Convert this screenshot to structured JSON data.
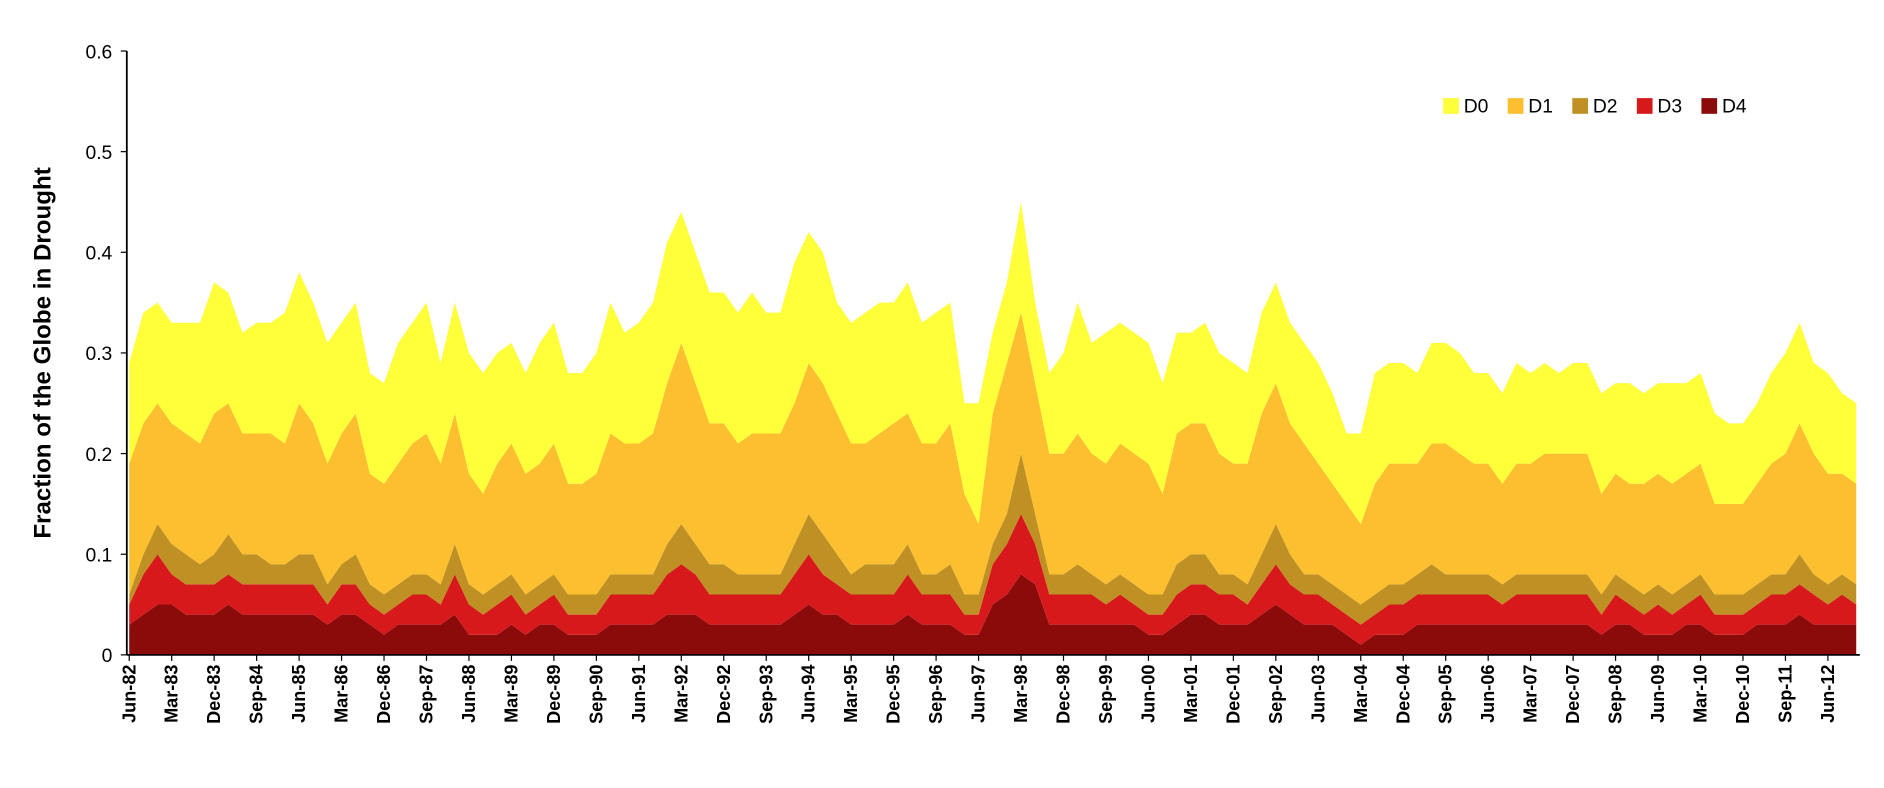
{
  "chart_data": {
    "type": "stacked_area",
    "y_label": "Fraction of the Globe in Drought",
    "ylim": [
      0,
      0.6
    ],
    "yticks": [
      0,
      0.1,
      0.2,
      0.3,
      0.4,
      0.5,
      0.6
    ],
    "legend": "upper right",
    "categories": [
      "Jun-82",
      null,
      null,
      "Mar-83",
      null,
      null,
      "Dec-83",
      null,
      null,
      "Sep-84",
      null,
      null,
      "Jun-85",
      null,
      null,
      "Mar-86",
      null,
      null,
      "Dec-86",
      null,
      null,
      "Sep-87",
      null,
      null,
      "Jun-88",
      null,
      null,
      "Mar-89",
      null,
      null,
      "Dec-89",
      null,
      null,
      "Sep-90",
      null,
      null,
      "Jun-91",
      null,
      null,
      "Mar-92",
      null,
      null,
      "Dec-92",
      null,
      null,
      "Sep-93",
      null,
      null,
      "Jun-94",
      null,
      null,
      "Mar-95",
      null,
      null,
      "Dec-95",
      null,
      null,
      "Sep-96",
      null,
      null,
      "Jun-97",
      null,
      null,
      "Mar-98",
      null,
      null,
      "Dec-98",
      null,
      null,
      "Sep-99",
      null,
      null,
      "Jun-00",
      null,
      null,
      "Mar-01",
      null,
      null,
      "Dec-01",
      null,
      null,
      "Sep-02",
      null,
      null,
      "Jun-03",
      null,
      null,
      "Mar-04",
      null,
      null,
      "Dec-04",
      null,
      null,
      "Sep-05",
      null,
      null,
      "Jun-06",
      null,
      null,
      "Mar-07",
      null,
      null,
      "Dec-07",
      null,
      null,
      "Sep-08",
      null,
      null,
      "Jun-09",
      null,
      null,
      "Mar-10",
      null,
      null,
      "Dec-10",
      null,
      null,
      "Sep-11",
      null,
      null,
      "Jun-12",
      null,
      null
    ],
    "series": [
      {
        "name": "D4",
        "color": "#8b0a0a",
        "values": [
          0.03,
          0.04,
          0.05,
          0.05,
          0.04,
          0.04,
          0.04,
          0.05,
          0.04,
          0.04,
          0.04,
          0.04,
          0.04,
          0.04,
          0.03,
          0.04,
          0.04,
          0.03,
          0.02,
          0.03,
          0.03,
          0.03,
          0.03,
          0.04,
          0.02,
          0.02,
          0.02,
          0.03,
          0.02,
          0.03,
          0.03,
          0.02,
          0.02,
          0.02,
          0.03,
          0.03,
          0.03,
          0.03,
          0.04,
          0.04,
          0.04,
          0.03,
          0.03,
          0.03,
          0.03,
          0.03,
          0.03,
          0.04,
          0.05,
          0.04,
          0.04,
          0.03,
          0.03,
          0.03,
          0.03,
          0.04,
          0.03,
          0.03,
          0.03,
          0.02,
          0.02,
          0.05,
          0.06,
          0.08,
          0.07,
          0.03,
          0.03,
          0.03,
          0.03,
          0.03,
          0.03,
          0.03,
          0.02,
          0.02,
          0.03,
          0.04,
          0.04,
          0.03,
          0.03,
          0.03,
          0.04,
          0.05,
          0.04,
          0.03,
          0.03,
          0.03,
          0.02,
          0.01,
          0.02,
          0.02,
          0.02,
          0.03,
          0.03,
          0.03,
          0.03,
          0.03,
          0.03,
          0.03,
          0.03,
          0.03,
          0.03,
          0.03,
          0.03,
          0.03,
          0.02,
          0.03,
          0.03,
          0.02,
          0.02,
          0.02,
          0.03,
          0.03,
          0.02,
          0.02,
          0.02,
          0.03,
          0.03,
          0.03,
          0.04,
          0.03,
          0.03,
          0.03,
          0.03
        ]
      },
      {
        "name": "D3",
        "color": "#d7191c",
        "values": [
          0.02,
          0.04,
          0.05,
          0.03,
          0.03,
          0.03,
          0.03,
          0.03,
          0.03,
          0.03,
          0.03,
          0.03,
          0.03,
          0.03,
          0.02,
          0.03,
          0.03,
          0.02,
          0.02,
          0.02,
          0.03,
          0.03,
          0.02,
          0.04,
          0.03,
          0.02,
          0.03,
          0.03,
          0.02,
          0.02,
          0.03,
          0.02,
          0.02,
          0.02,
          0.03,
          0.03,
          0.03,
          0.03,
          0.04,
          0.05,
          0.04,
          0.03,
          0.03,
          0.03,
          0.03,
          0.03,
          0.03,
          0.04,
          0.05,
          0.04,
          0.03,
          0.03,
          0.03,
          0.03,
          0.03,
          0.04,
          0.03,
          0.03,
          0.03,
          0.02,
          0.02,
          0.04,
          0.05,
          0.06,
          0.04,
          0.03,
          0.03,
          0.03,
          0.03,
          0.02,
          0.03,
          0.02,
          0.02,
          0.02,
          0.03,
          0.03,
          0.03,
          0.03,
          0.03,
          0.02,
          0.03,
          0.04,
          0.03,
          0.03,
          0.03,
          0.02,
          0.02,
          0.02,
          0.02,
          0.03,
          0.03,
          0.03,
          0.03,
          0.03,
          0.03,
          0.03,
          0.03,
          0.02,
          0.03,
          0.03,
          0.03,
          0.03,
          0.03,
          0.03,
          0.02,
          0.03,
          0.02,
          0.02,
          0.03,
          0.02,
          0.02,
          0.03,
          0.02,
          0.02,
          0.02,
          0.02,
          0.03,
          0.03,
          0.03,
          0.03,
          0.02,
          0.03,
          0.02
        ]
      },
      {
        "name": "D2",
        "color": "#bf9124",
        "values": [
          0.01,
          0.02,
          0.03,
          0.03,
          0.03,
          0.02,
          0.03,
          0.04,
          0.03,
          0.03,
          0.02,
          0.02,
          0.03,
          0.03,
          0.02,
          0.02,
          0.03,
          0.02,
          0.02,
          0.02,
          0.02,
          0.02,
          0.02,
          0.03,
          0.02,
          0.02,
          0.02,
          0.02,
          0.02,
          0.02,
          0.02,
          0.02,
          0.02,
          0.02,
          0.02,
          0.02,
          0.02,
          0.02,
          0.03,
          0.04,
          0.03,
          0.03,
          0.03,
          0.02,
          0.02,
          0.02,
          0.02,
          0.03,
          0.04,
          0.04,
          0.03,
          0.02,
          0.03,
          0.03,
          0.03,
          0.03,
          0.02,
          0.02,
          0.03,
          0.02,
          0.02,
          0.02,
          0.03,
          0.06,
          0.03,
          0.02,
          0.02,
          0.03,
          0.02,
          0.02,
          0.02,
          0.02,
          0.02,
          0.02,
          0.03,
          0.03,
          0.03,
          0.02,
          0.02,
          0.02,
          0.03,
          0.04,
          0.03,
          0.02,
          0.02,
          0.02,
          0.02,
          0.02,
          0.02,
          0.02,
          0.02,
          0.02,
          0.03,
          0.02,
          0.02,
          0.02,
          0.02,
          0.02,
          0.02,
          0.02,
          0.02,
          0.02,
          0.02,
          0.02,
          0.02,
          0.02,
          0.02,
          0.02,
          0.02,
          0.02,
          0.02,
          0.02,
          0.02,
          0.02,
          0.02,
          0.02,
          0.02,
          0.02,
          0.03,
          0.02,
          0.02,
          0.02,
          0.02
        ]
      },
      {
        "name": "D1",
        "color": "#fcbf2f",
        "values": [
          0.13,
          0.13,
          0.12,
          0.12,
          0.12,
          0.12,
          0.14,
          0.13,
          0.12,
          0.12,
          0.13,
          0.12,
          0.15,
          0.13,
          0.12,
          0.13,
          0.14,
          0.11,
          0.11,
          0.12,
          0.13,
          0.14,
          0.12,
          0.13,
          0.11,
          0.1,
          0.12,
          0.13,
          0.12,
          0.12,
          0.13,
          0.11,
          0.11,
          0.12,
          0.14,
          0.13,
          0.13,
          0.14,
          0.16,
          0.18,
          0.16,
          0.14,
          0.14,
          0.13,
          0.14,
          0.14,
          0.14,
          0.14,
          0.15,
          0.15,
          0.14,
          0.13,
          0.12,
          0.13,
          0.14,
          0.13,
          0.13,
          0.13,
          0.14,
          0.1,
          0.07,
          0.13,
          0.15,
          0.14,
          0.13,
          0.12,
          0.12,
          0.13,
          0.12,
          0.12,
          0.13,
          0.13,
          0.13,
          0.1,
          0.13,
          0.13,
          0.13,
          0.12,
          0.11,
          0.12,
          0.14,
          0.14,
          0.13,
          0.13,
          0.11,
          0.1,
          0.09,
          0.08,
          0.11,
          0.12,
          0.12,
          0.11,
          0.12,
          0.13,
          0.12,
          0.11,
          0.11,
          0.1,
          0.11,
          0.11,
          0.12,
          0.12,
          0.12,
          0.12,
          0.1,
          0.1,
          0.1,
          0.11,
          0.11,
          0.11,
          0.11,
          0.11,
          0.09,
          0.09,
          0.09,
          0.1,
          0.11,
          0.12,
          0.13,
          0.12,
          0.11,
          0.1,
          0.1
        ]
      },
      {
        "name": "D0",
        "color": "#ffff3a",
        "values": [
          0.1,
          0.11,
          0.1,
          0.1,
          0.11,
          0.12,
          0.13,
          0.11,
          0.1,
          0.11,
          0.11,
          0.13,
          0.13,
          0.12,
          0.12,
          0.11,
          0.11,
          0.1,
          0.1,
          0.12,
          0.12,
          0.13,
          0.1,
          0.11,
          0.12,
          0.12,
          0.11,
          0.1,
          0.1,
          0.12,
          0.12,
          0.11,
          0.11,
          0.12,
          0.13,
          0.11,
          0.12,
          0.13,
          0.14,
          0.13,
          0.13,
          0.13,
          0.13,
          0.13,
          0.14,
          0.12,
          0.12,
          0.14,
          0.13,
          0.13,
          0.11,
          0.12,
          0.13,
          0.13,
          0.12,
          0.13,
          0.12,
          0.13,
          0.12,
          0.09,
          0.12,
          0.08,
          0.08,
          0.11,
          0.08,
          0.08,
          0.1,
          0.13,
          0.11,
          0.13,
          0.12,
          0.12,
          0.12,
          0.11,
          0.1,
          0.09,
          0.1,
          0.1,
          0.1,
          0.09,
          0.1,
          0.1,
          0.1,
          0.1,
          0.1,
          0.09,
          0.07,
          0.09,
          0.11,
          0.1,
          0.1,
          0.09,
          0.1,
          0.1,
          0.1,
          0.09,
          0.09,
          0.09,
          0.1,
          0.09,
          0.09,
          0.08,
          0.09,
          0.09,
          0.1,
          0.09,
          0.1,
          0.09,
          0.09,
          0.1,
          0.09,
          0.09,
          0.09,
          0.08,
          0.08,
          0.08,
          0.09,
          0.1,
          0.1,
          0.09,
          0.1,
          0.08,
          0.08
        ]
      }
    ]
  }
}
